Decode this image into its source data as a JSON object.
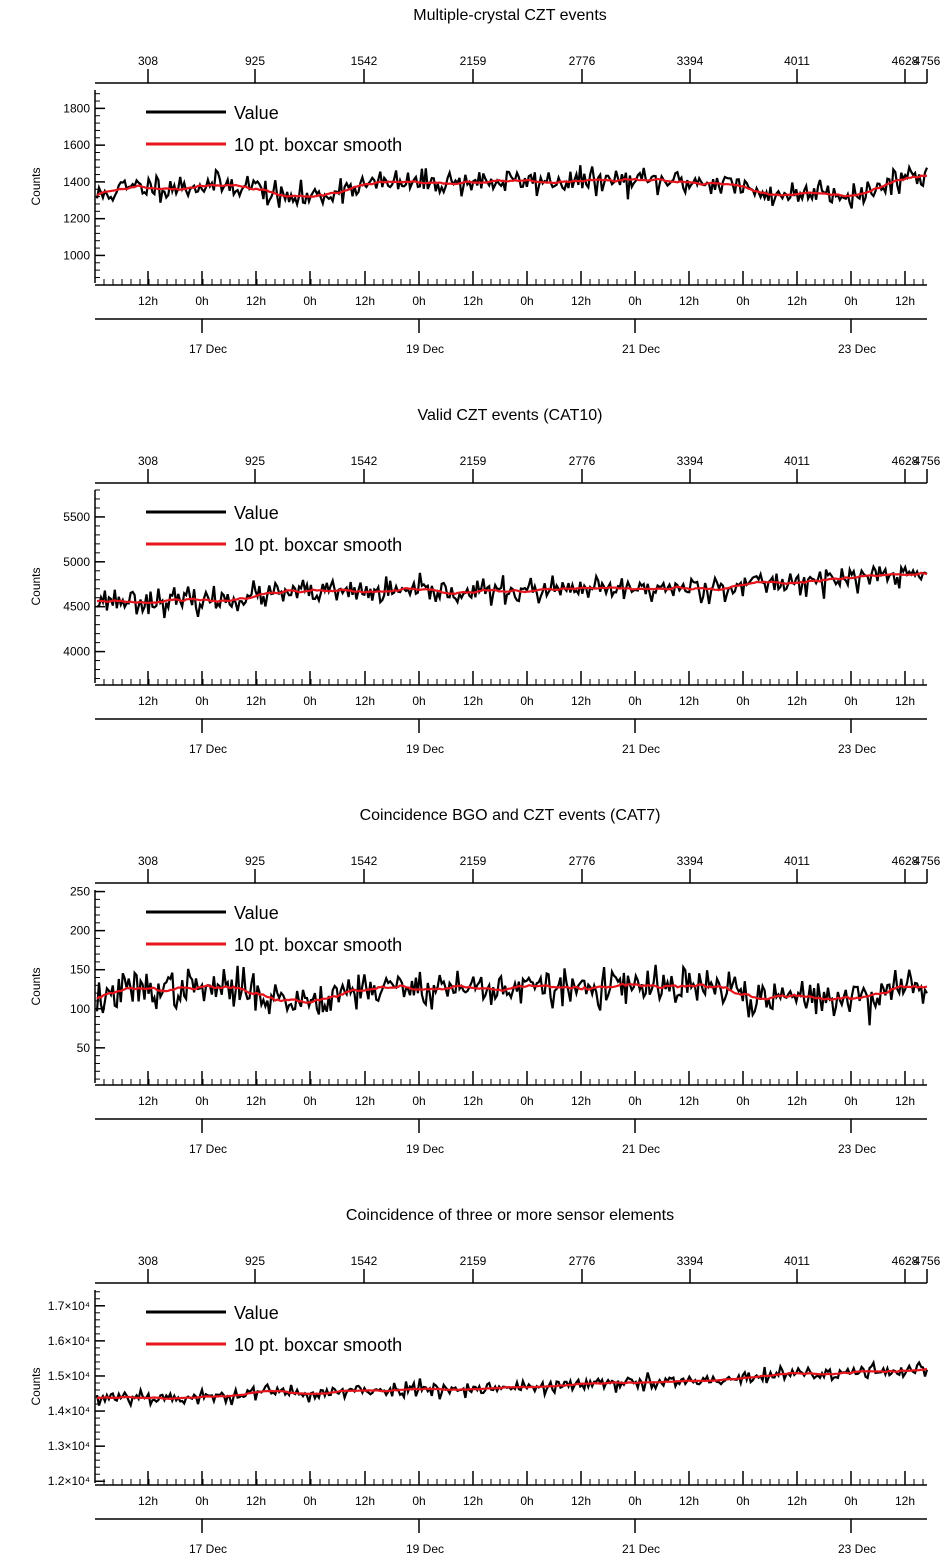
{
  "chart_data": [
    {
      "type": "line",
      "title": "Multiple-crystal CZT events",
      "ylabel": "Counts",
      "ylim": [
        850,
        1900
      ],
      "y_ticks_major": [
        1000,
        1200,
        1400,
        1600,
        1800
      ],
      "y_ticks_labels": [
        "1000",
        "1200",
        "1400",
        "1600",
        "1800"
      ],
      "legend": {
        "placement": "top-left"
      },
      "top_axis_ticks": [
        "308",
        "925",
        "1542",
        "2159",
        "2776",
        "3394",
        "4011",
        "4628",
        "4756"
      ],
      "time_axis_labels": [
        "12h",
        "0h",
        "12h",
        "0h",
        "12h",
        "0h",
        "12h",
        "0h",
        "12h",
        "0h",
        "12h",
        "0h",
        "12h",
        "0h",
        "12h"
      ],
      "date_axis_labels": [
        "17 Dec",
        "19 Dec",
        "21 Dec",
        "23 Dec"
      ],
      "series": [
        {
          "name": "Value",
          "color": "#000000",
          "noise": 35,
          "seed": 11
        },
        {
          "name": "10 pt. boxcar smooth",
          "color": "#e8141b",
          "noise": 0,
          "seed": 11
        }
      ],
      "trend": [
        [
          0,
          1320
        ],
        [
          3,
          1340
        ],
        [
          6,
          1360
        ],
        [
          12,
          1375
        ],
        [
          22,
          1375
        ],
        [
          32,
          1385
        ],
        [
          40,
          1380
        ],
        [
          44,
          1330
        ],
        [
          48,
          1310
        ],
        [
          54,
          1320
        ],
        [
          58,
          1330
        ],
        [
          62,
          1370
        ],
        [
          70,
          1390
        ],
        [
          90,
          1400
        ],
        [
          130,
          1405
        ],
        [
          150,
          1400
        ],
        [
          160,
          1395
        ],
        [
          165,
          1340
        ],
        [
          170,
          1335
        ],
        [
          178,
          1330
        ],
        [
          182,
          1370
        ],
        [
          186,
          1340
        ],
        [
          190,
          1330
        ],
        [
          196,
          1350
        ],
        [
          200,
          1410
        ],
        [
          205,
          1440
        ],
        [
          209,
          1425
        ]
      ]
    },
    {
      "type": "line",
      "title": "Valid CZT events (CAT10)",
      "ylabel": "Counts",
      "ylim": [
        3650,
        5800
      ],
      "y_ticks_major": [
        4000,
        4500,
        5000,
        5500
      ],
      "y_ticks_labels": [
        "4000",
        "4500",
        "5000",
        "5500"
      ],
      "legend": {
        "placement": "top-left"
      },
      "top_axis_ticks": [
        "308",
        "925",
        "1542",
        "2159",
        "2776",
        "3394",
        "4011",
        "4628",
        "4756"
      ],
      "time_axis_labels": [
        "12h",
        "0h",
        "12h",
        "0h",
        "12h",
        "0h",
        "12h",
        "0h",
        "12h",
        "0h",
        "12h",
        "0h",
        "12h",
        "0h",
        "12h"
      ],
      "date_axis_labels": [
        "17 Dec",
        "19 Dec",
        "21 Dec",
        "23 Dec"
      ],
      "series": [
        {
          "name": "Value",
          "color": "#000000",
          "noise": 70,
          "seed": 23
        },
        {
          "name": "10 pt. boxcar smooth",
          "color": "#e8141b",
          "noise": 0,
          "seed": 23
        }
      ],
      "trend": [
        [
          0,
          4580
        ],
        [
          20,
          4560
        ],
        [
          30,
          4570
        ],
        [
          40,
          4620
        ],
        [
          50,
          4650
        ],
        [
          60,
          4660
        ],
        [
          80,
          4660
        ],
        [
          100,
          4670
        ],
        [
          120,
          4680
        ],
        [
          140,
          4700
        ],
        [
          155,
          4720
        ],
        [
          165,
          4750
        ],
        [
          175,
          4780
        ],
        [
          185,
          4800
        ],
        [
          195,
          4840
        ],
        [
          209,
          4860
        ]
      ]
    },
    {
      "type": "line",
      "title": "Coincidence BGO and CZT events (CAT7)",
      "ylabel": "Counts",
      "ylim": [
        5,
        252
      ],
      "y_ticks_major": [
        50,
        100,
        150,
        200,
        250
      ],
      "y_ticks_labels": [
        "50",
        "100",
        "150",
        "200",
        "250"
      ],
      "legend": {
        "placement": "top-left"
      },
      "top_axis_ticks": [
        "308",
        "925",
        "1542",
        "2159",
        "2776",
        "3394",
        "4011",
        "4628",
        "4756"
      ],
      "time_axis_labels": [
        "12h",
        "0h",
        "12h",
        "0h",
        "12h",
        "0h",
        "12h",
        "0h",
        "12h",
        "0h",
        "12h",
        "0h",
        "12h",
        "0h",
        "12h"
      ],
      "date_axis_labels": [
        "17 Dec",
        "19 Dec",
        "21 Dec",
        "23 Dec"
      ],
      "series": [
        {
          "name": "Value",
          "color": "#000000",
          "noise": 12,
          "seed": 37
        },
        {
          "name": "10 pt. boxcar smooth",
          "color": "#e8141b",
          "noise": 0,
          "seed": 37
        }
      ],
      "trend": [
        [
          0,
          110
        ],
        [
          4,
          118
        ],
        [
          8,
          125
        ],
        [
          40,
          126
        ],
        [
          44,
          112
        ],
        [
          50,
          110
        ],
        [
          58,
          115
        ],
        [
          62,
          125
        ],
        [
          80,
          128
        ],
        [
          120,
          126
        ],
        [
          150,
          128
        ],
        [
          160,
          125
        ],
        [
          165,
          112
        ],
        [
          170,
          110
        ],
        [
          175,
          115
        ],
        [
          182,
          118
        ],
        [
          186,
          112
        ],
        [
          190,
          110
        ],
        [
          196,
          118
        ],
        [
          200,
          128
        ],
        [
          205,
          130
        ],
        [
          209,
          128
        ]
      ]
    },
    {
      "type": "line",
      "title": "Coincidence of three or more sensor elements",
      "ylabel": "Counts",
      "ylim": [
        11950,
        17450
      ],
      "y_ticks_major": [
        12000,
        13000,
        14000,
        15000,
        16000,
        17000
      ],
      "y_ticks_labels": [
        "1.2×10⁴",
        "1.3×10⁴",
        "1.4×10⁴",
        "1.5×10⁴",
        "1.6×10⁴",
        "1.7×10⁴"
      ],
      "legend": {
        "placement": "top-left"
      },
      "top_axis_ticks": [
        "308",
        "925",
        "1542",
        "2159",
        "2776",
        "3394",
        "4011",
        "4628",
        "4756"
      ],
      "time_axis_labels": [
        "12h",
        "0h",
        "12h",
        "0h",
        "12h",
        "0h",
        "12h",
        "0h",
        "12h",
        "0h",
        "12h",
        "0h",
        "12h",
        "0h",
        "12h"
      ],
      "date_axis_labels": [
        "17 Dec",
        "19 Dec",
        "21 Dec",
        "23 Dec"
      ],
      "series": [
        {
          "name": "Value",
          "color": "#000000",
          "noise": 110,
          "seed": 53
        },
        {
          "name": "10 pt. boxcar smooth",
          "color": "#e8141b",
          "noise": 0,
          "seed": 53
        }
      ],
      "trend": [
        [
          0,
          14300
        ],
        [
          4,
          14450
        ],
        [
          15,
          14400
        ],
        [
          25,
          14350
        ],
        [
          40,
          14550
        ],
        [
          55,
          14500
        ],
        [
          65,
          14550
        ],
        [
          80,
          14650
        ],
        [
          100,
          14650
        ],
        [
          120,
          14750
        ],
        [
          140,
          14800
        ],
        [
          155,
          14850
        ],
        [
          165,
          14950
        ],
        [
          175,
          15050
        ],
        [
          185,
          15050
        ],
        [
          195,
          15150
        ],
        [
          209,
          15200
        ]
      ]
    }
  ]
}
